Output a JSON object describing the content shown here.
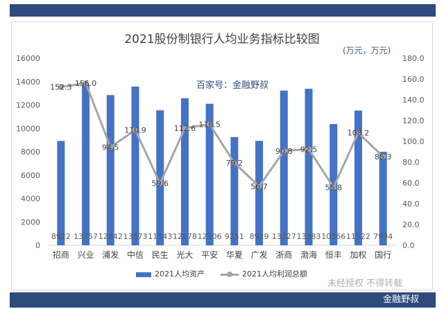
{
  "title": "2021股份制银行人均业务指标比较图",
  "unit_label": "(万元，万元)",
  "watermark_center": "百家号：金融野叔",
  "watermark_bottom": "未经授权 不得转载",
  "footer_brand": "金融野叔",
  "colors": {
    "bar": "#4472c4",
    "line": "#a5a5a5",
    "band": "#2f4a7c"
  },
  "chart_data": {
    "type": "bar",
    "title": "2021股份制银行人均业务指标比较图",
    "categories": [
      "招商",
      "兴业",
      "浦发",
      "中信",
      "民生",
      "光大",
      "平安",
      "华夏",
      "广发",
      "浙商",
      "渤海",
      "恒丰",
      "加权",
      "国行"
    ],
    "series": [
      {
        "name": "2021人均资产",
        "type": "bar",
        "axis": "left",
        "values": [
          8922,
          13757,
          12842,
          13573,
          11543,
          12578,
          12106,
          9251,
          8929,
          13227,
          13383,
          10366,
          11522,
          7994
        ],
        "value_labels": [
          "8922",
          "13757",
          "12842",
          "13573",
          "11543",
          "12578",
          "12106",
          "9251",
          "8929",
          "13227",
          "13383",
          "10366",
          "11522",
          "7994"
        ]
      },
      {
        "name": "2021人均利润总额",
        "type": "line",
        "axis": "right",
        "values": [
          152.3,
          156.0,
          94.5,
          110.9,
          59.6,
          112.6,
          116.5,
          79.2,
          56.7,
          90.8,
          92.5,
          55.8,
          108.2,
          85.3
        ],
        "value_labels": [
          "152.3",
          "156.0",
          "94.5",
          "110.9",
          "59.6",
          "112.6",
          "116.5",
          "79.2",
          "56.7",
          "90.8",
          "92.5",
          "55.8",
          "108.2",
          "85.3"
        ]
      }
    ],
    "y_left": {
      "min": 0,
      "max": 16000,
      "ticks": [
        "0",
        "2000",
        "4000",
        "6000",
        "8000",
        "10000",
        "12000",
        "14000",
        "16000"
      ]
    },
    "y_right": {
      "min": 0,
      "max": 180,
      "ticks": [
        "0.0",
        "20.0",
        "40.0",
        "60.0",
        "80.0",
        "100.0",
        "120.0",
        "140.0",
        "160.0",
        "180.0"
      ]
    },
    "grid": false,
    "legend_position": "bottom"
  }
}
